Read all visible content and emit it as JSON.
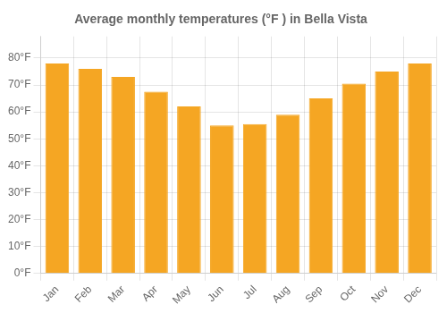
{
  "chart_data": {
    "type": "bar",
    "title": "Average monthly temperatures (°F ) in Bella Vista",
    "categories": [
      "Jan",
      "Feb",
      "Mar",
      "Apr",
      "May",
      "Jun",
      "Jul",
      "Aug",
      "Sep",
      "Oct",
      "Nov",
      "Dec"
    ],
    "values": [
      78,
      76,
      73,
      67.5,
      62,
      55,
      55.5,
      59,
      65,
      70.5,
      75,
      78
    ],
    "color": "#F5A623",
    "ylim": [
      0,
      88
    ],
    "yticks": [
      {
        "value": 0,
        "label": "0°F"
      },
      {
        "value": 10,
        "label": "10°F"
      },
      {
        "value": 20,
        "label": "20°F"
      },
      {
        "value": 30,
        "label": "30°F"
      },
      {
        "value": 40,
        "label": "40°F"
      },
      {
        "value": 50,
        "label": "50°F"
      },
      {
        "value": 60,
        "label": "60°F"
      },
      {
        "value": 70,
        "label": "70°F"
      },
      {
        "value": 80,
        "label": "80°F"
      }
    ],
    "grid": true
  }
}
